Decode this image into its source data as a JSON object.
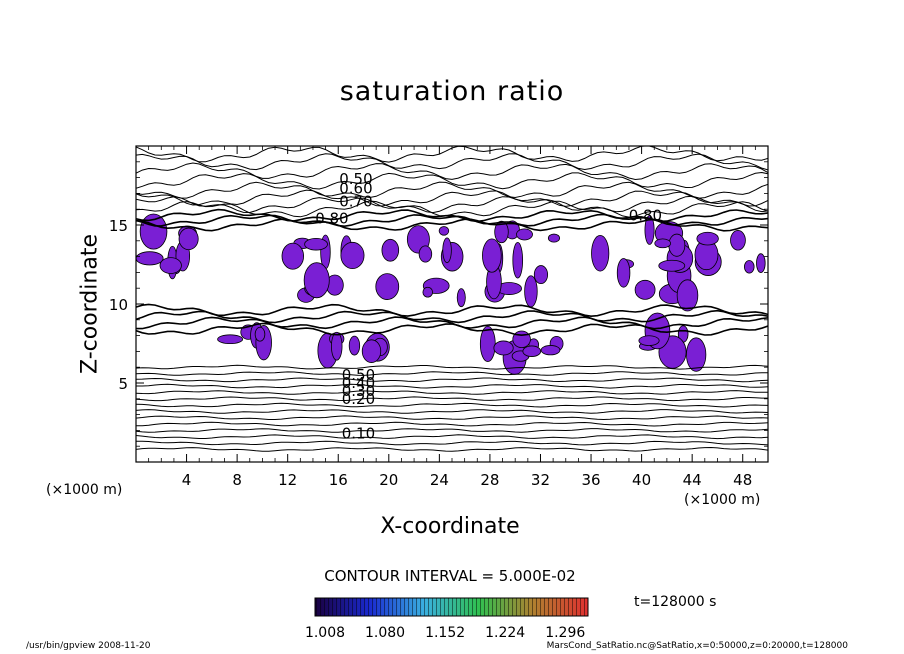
{
  "chart_data": {
    "type": "contour",
    "title": "saturation ratio",
    "xlabel": "X-coordinate",
    "ylabel": "Z-coordinate",
    "x_unit": "(×1000 m)",
    "z_unit": "(×1000 m)",
    "xlim": [
      0,
      50
    ],
    "ylim": [
      0,
      20
    ],
    "x_ticks": [
      4,
      8,
      12,
      16,
      20,
      24,
      28,
      32,
      36,
      40,
      44,
      48
    ],
    "y_ticks": [
      5,
      10,
      15
    ],
    "contour_labels": [
      {
        "x": 17.4,
        "z": 17.9,
        "text": "0.50"
      },
      {
        "x": 17.4,
        "z": 17.3,
        "text": "0.60"
      },
      {
        "x": 17.4,
        "z": 16.5,
        "text": "0.70"
      },
      {
        "x": 15.5,
        "z": 15.4,
        "text": "0.80"
      },
      {
        "x": 40.3,
        "z": 15.6,
        "text": "0.80"
      },
      {
        "x": 17.6,
        "z": 5.5,
        "text": "0.50"
      },
      {
        "x": 17.6,
        "z": 5.0,
        "text": "0.40"
      },
      {
        "x": 17.6,
        "z": 4.5,
        "text": "0.30"
      },
      {
        "x": 17.6,
        "z": 4.0,
        "text": "0.20"
      },
      {
        "x": 17.6,
        "z": 1.8,
        "text": "0.10"
      }
    ],
    "supersaturated_regions": [
      {
        "x": [
          0.4,
          6.0
        ],
        "z": [
          10.5,
          14.8
        ]
      },
      {
        "x": [
          12.0,
          20.5
        ],
        "z": [
          10.5,
          14.8
        ]
      },
      {
        "x": [
          22.0,
          36.0
        ],
        "z": [
          10.2,
          14.8
        ]
      },
      {
        "x": [
          36.0,
          50.0
        ],
        "z": [
          10.5,
          14.8
        ]
      },
      {
        "x": [
          7.0,
          10.5
        ],
        "z": [
          7.5,
          8.5
        ]
      },
      {
        "x": [
          14.5,
          19.5
        ],
        "z": [
          6.5,
          8.5
        ]
      },
      {
        "x": [
          27.5,
          34.0
        ],
        "z": [
          6.5,
          8.0
        ]
      },
      {
        "x": [
          40.5,
          45.0
        ],
        "z": [
          6.3,
          8.3
        ]
      }
    ],
    "contour_interval_text": "CONTOUR INTERVAL = 5.000E-02",
    "colorbar": {
      "ticks": [
        "1.008",
        "1.080",
        "1.152",
        "1.224",
        "1.296"
      ],
      "range": [
        1.008,
        1.296
      ]
    },
    "time_text": "t=128000 s"
  },
  "footer": {
    "left": "/usr/bin/gpview   2008-11-20",
    "right": "MarsCond_SatRatio.nc@SatRatio,x=0:50000,z=0:20000,t=128000"
  },
  "colors": {
    "fill_purple": "#7a1fd4",
    "fill_blue": "#4a3ad0",
    "line": "#000000"
  }
}
